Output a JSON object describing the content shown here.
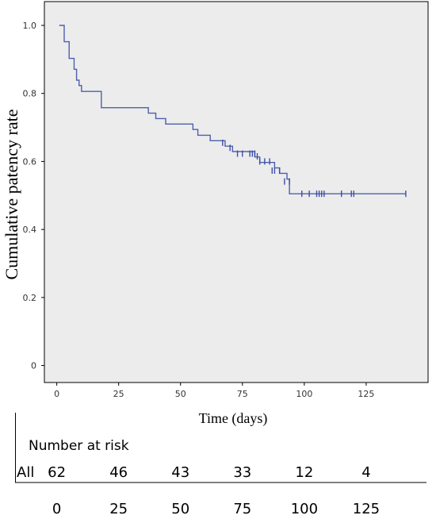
{
  "chart_data": {
    "type": "line",
    "title": "",
    "xlabel": "Time (days)",
    "ylabel": "Cumulative patency rate",
    "xlim": [
      -5,
      150
    ],
    "ylim": [
      -0.05,
      1.07
    ],
    "x_ticks": [
      0,
      25,
      50,
      75,
      100,
      125
    ],
    "y_ticks": [
      0,
      0.2,
      0.4,
      0.6,
      0.8,
      1.0
    ],
    "y_tick_labels": [
      "0",
      "0.2",
      "0.4",
      "0.6",
      "0.8",
      "1.0"
    ],
    "grid": false,
    "series": [
      {
        "color": "#4e5fad",
        "step_x": [
          1,
          3,
          5,
          7,
          8,
          9,
          10,
          11,
          17,
          18,
          37,
          40,
          44,
          55,
          57,
          62,
          68,
          71,
          80,
          82,
          88,
          90,
          93,
          96
        ],
        "step_y": [
          1.0,
          0.952,
          0.903,
          0.871,
          0.839,
          0.823,
          0.806,
          0.806,
          0.806,
          0.758,
          0.742,
          0.726,
          0.71,
          0.694,
          0.677,
          0.661,
          0.645,
          0.629,
          0.629,
          0.613,
          0.597,
          0.581,
          0.565,
          0.548
        ],
        "curve_x": [
          1,
          3,
          5,
          7,
          8,
          9,
          10,
          11,
          18,
          37,
          40,
          44,
          55,
          57,
          62,
          68,
          71,
          80,
          82,
          88,
          90,
          93,
          94
        ],
        "curve_y": [
          1.0,
          0.952,
          0.903,
          0.871,
          0.839,
          0.823,
          0.806,
          0.806,
          0.758,
          0.742,
          0.726,
          0.71,
          0.694,
          0.677,
          0.661,
          0.645,
          0.629,
          0.613,
          0.597,
          0.581,
          0.565,
          0.548,
          0.505
        ],
        "end_x": 141,
        "censor_x": [
          67,
          70,
          73,
          75,
          78,
          79,
          80,
          81,
          82,
          84,
          86,
          87,
          88,
          90,
          92,
          94,
          99,
          102,
          105,
          106,
          107,
          108,
          115,
          119,
          120,
          141
        ],
        "censor_y": [
          0.655,
          0.64,
          0.623,
          0.623,
          0.623,
          0.623,
          0.623,
          0.615,
          0.6,
          0.6,
          0.6,
          0.573,
          0.573,
          0.573,
          0.541,
          0.541,
          0.505,
          0.505,
          0.505,
          0.505,
          0.505,
          0.505,
          0.505,
          0.505,
          0.505,
          0.505
        ]
      }
    ]
  },
  "risk_table": {
    "title": "Number at risk",
    "row_label": "All",
    "counts": [
      "62",
      "46",
      "43",
      "33",
      "12",
      "4"
    ],
    "times": [
      "0",
      "25",
      "50",
      "75",
      "100",
      "125"
    ]
  }
}
